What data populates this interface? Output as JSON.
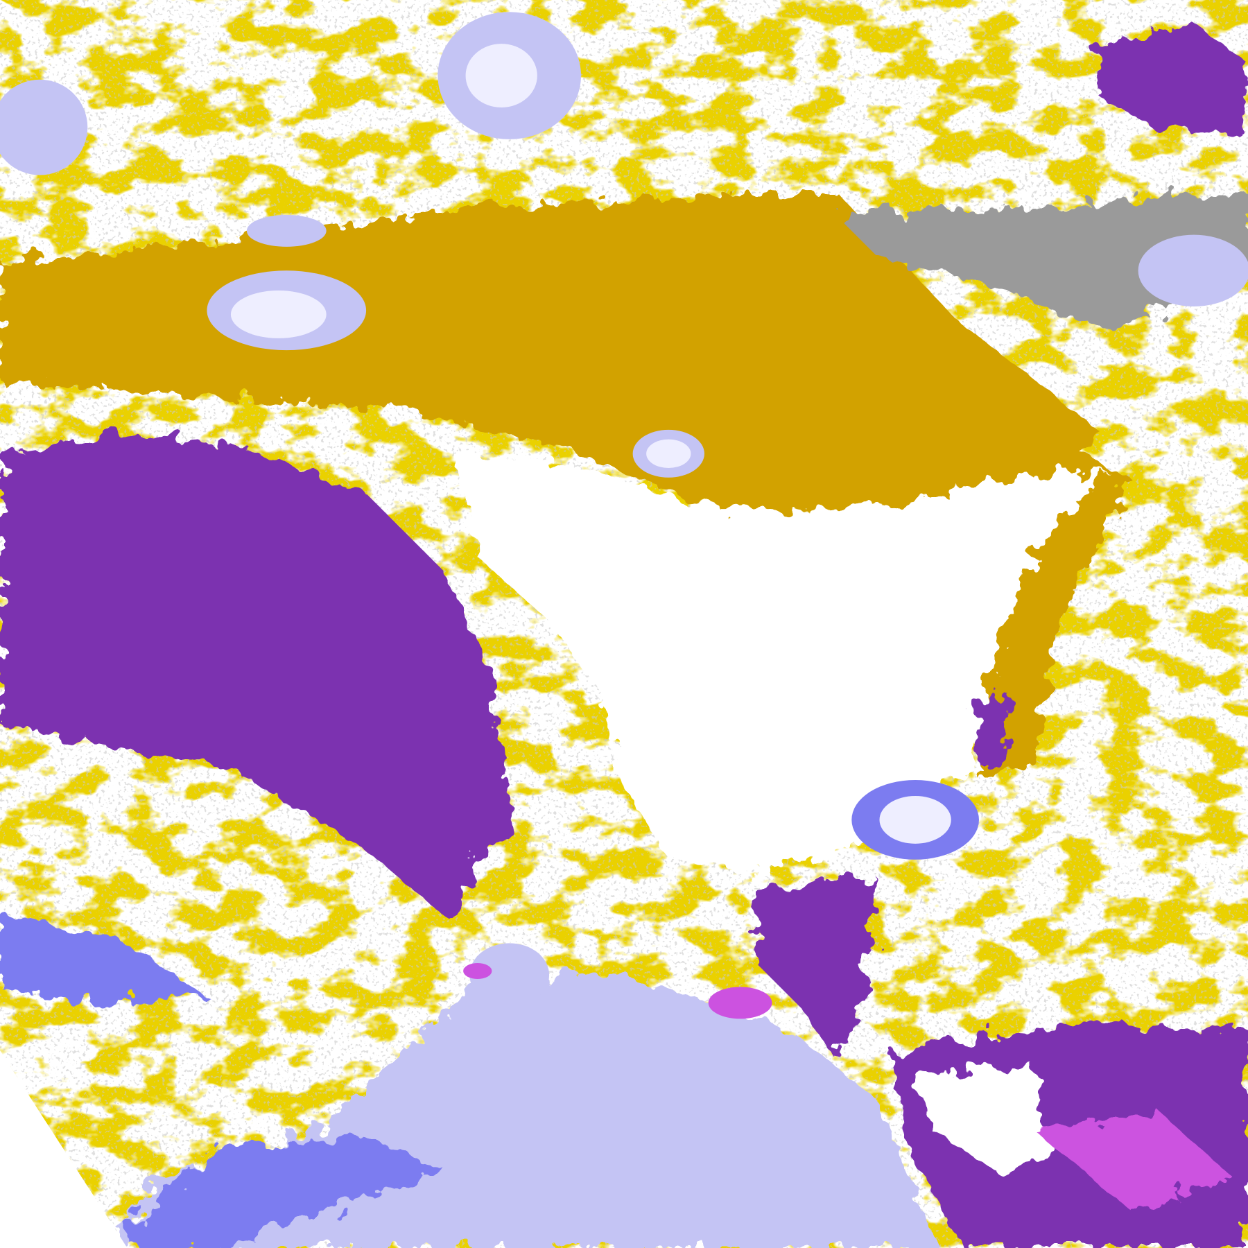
{
  "map": {
    "palette": {
      "clear": "#ffffff",
      "gold": "#d2a200",
      "purple": "#7c32b0",
      "gray": "#9a9a9a",
      "lavender": "#c4c4f4",
      "blue_violet": "#7c7cf0",
      "magenta": "#cc52e0",
      "pale": "#eeeeff"
    }
  }
}
